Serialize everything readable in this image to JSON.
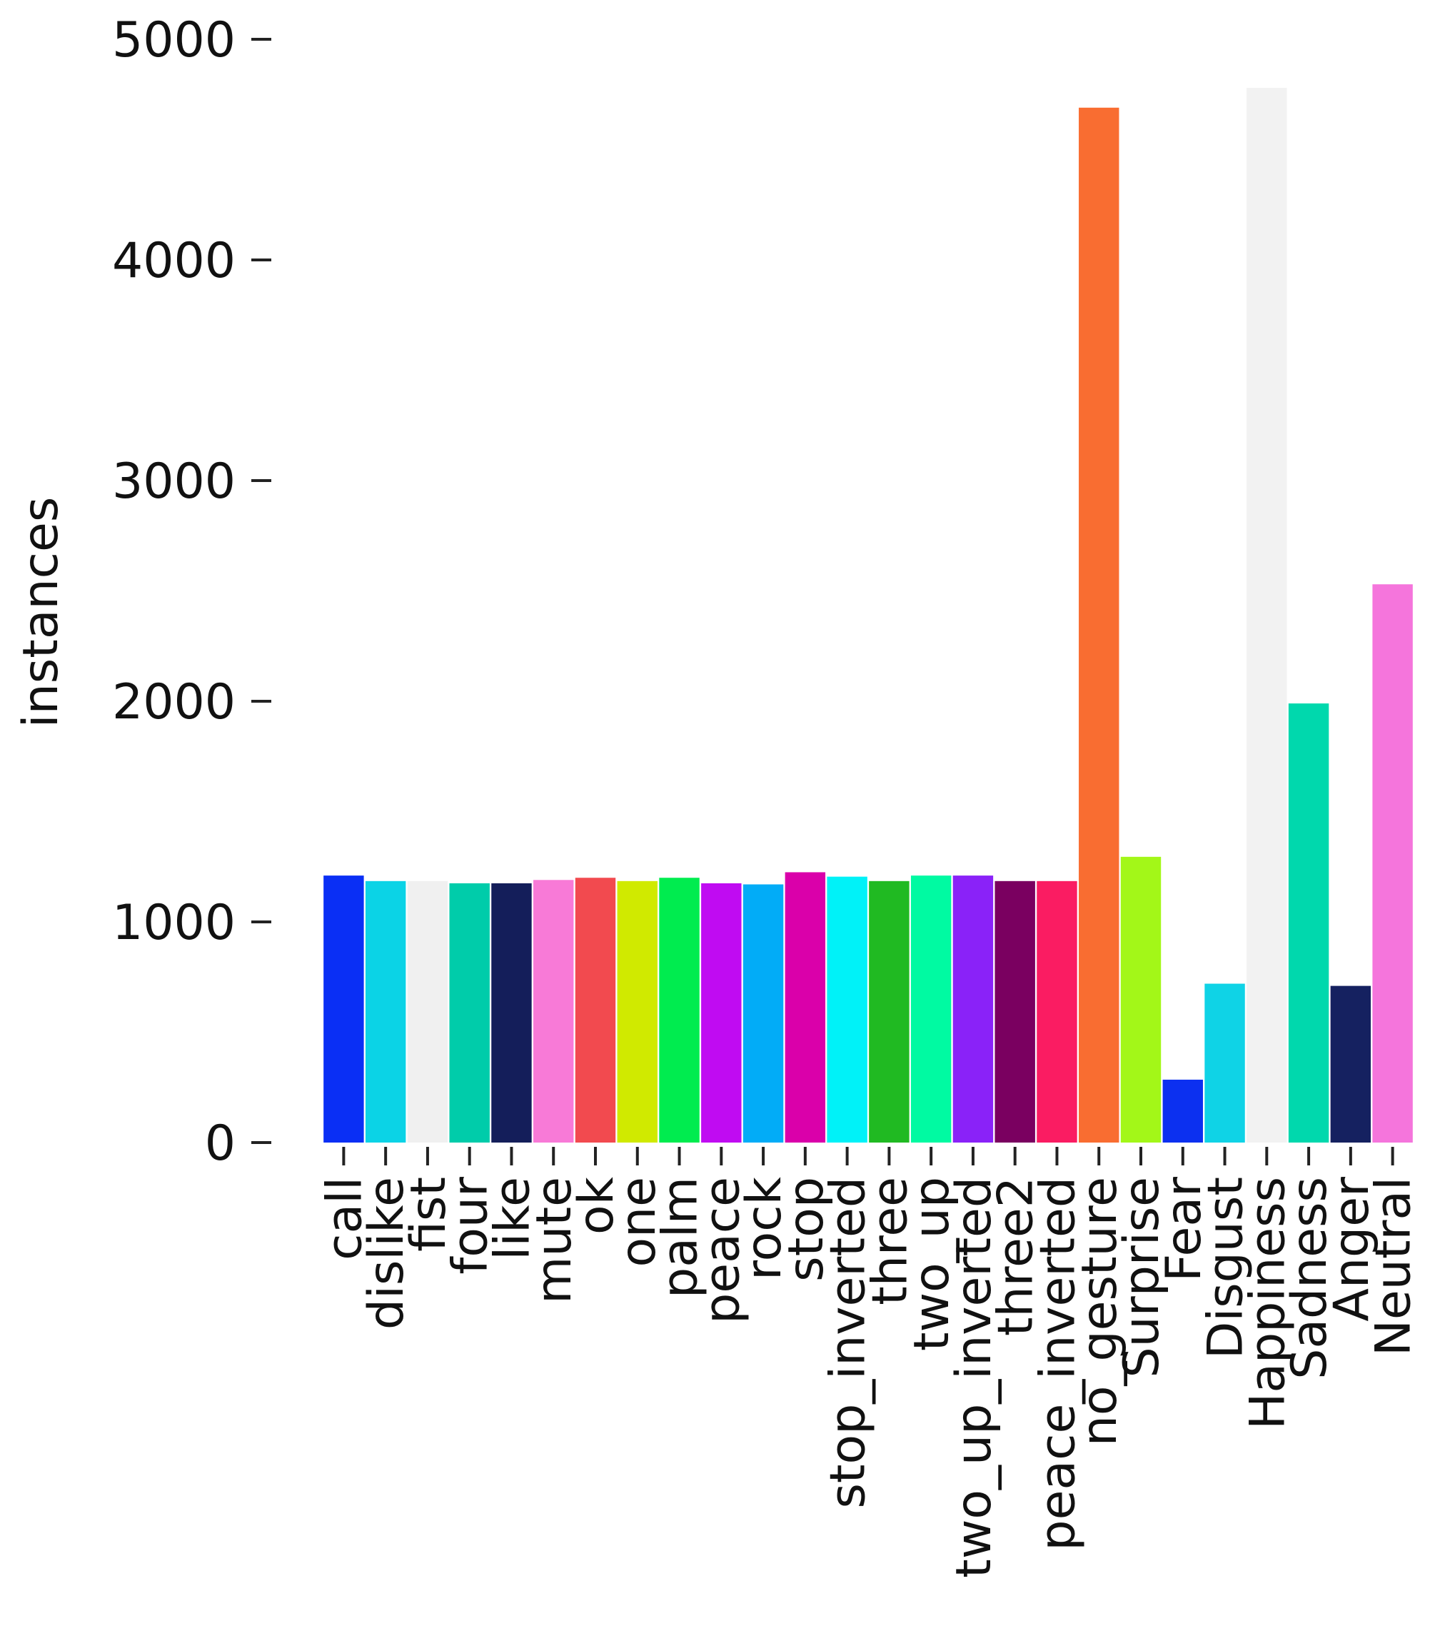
{
  "chart_data": {
    "type": "bar",
    "title": "",
    "xlabel": "",
    "ylabel": "instances",
    "ylim": [
      0,
      5000
    ],
    "yticks": [
      0,
      1000,
      2000,
      3000,
      4000,
      5000
    ],
    "grid": false,
    "legend": "none",
    "categories": [
      "call",
      "dislike",
      "fist",
      "four",
      "like",
      "mute",
      "ok",
      "one",
      "palm",
      "peace",
      "rock",
      "stop",
      "stop_inverted",
      "three",
      "two_up",
      "two_up_inverted",
      "three2",
      "peace_inverted",
      "no_gesture",
      "Surprise",
      "Fear",
      "Disgust",
      "Happiness",
      "Sadness",
      "Anger",
      "Neutral"
    ],
    "values": [
      1210,
      1185,
      1185,
      1175,
      1175,
      1190,
      1200,
      1185,
      1200,
      1175,
      1170,
      1225,
      1205,
      1185,
      1210,
      1210,
      1185,
      1185,
      4690,
      1295,
      285,
      720,
      4780,
      1990,
      710,
      2530
    ],
    "colors": [
      "#0a2ff5",
      "#0bd3e6",
      "#f0f0f0",
      "#00ccaa",
      "#141e5a",
      "#f87ad7",
      "#f24a4f",
      "#d0ea00",
      "#00ec4f",
      "#c00bf2",
      "#02acf7",
      "#da00aa",
      "#00f2f8",
      "#20ba22",
      "#00faa2",
      "#8a22f8",
      "#7a0060",
      "#fa1c62",
      "#f96d31",
      "#a3f718",
      "#0c30f0",
      "#0fd3e6",
      "#f2f2f2",
      "#00d8ad",
      "#152160",
      "#f575dc"
    ]
  }
}
